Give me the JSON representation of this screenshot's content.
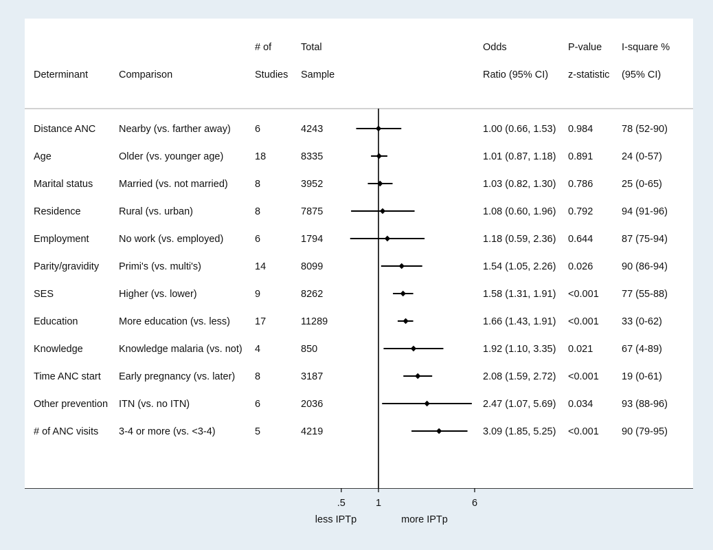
{
  "chart_data": {
    "type": "forest",
    "x_scale": "log",
    "reference_line": 1,
    "xticks": [
      {
        "value": 0.5,
        "label": ".5"
      },
      {
        "value": 1,
        "label": "1"
      },
      {
        "value": 6,
        "label": "6"
      }
    ],
    "xlabel_left": "less IPTp",
    "xlabel_right": "more IPTp",
    "columns": {
      "determinant": [
        "",
        "Determinant"
      ],
      "comparison": [
        "",
        "Comparison"
      ],
      "studies": [
        "# of",
        "Studies"
      ],
      "sample": [
        "Total",
        "Sample"
      ],
      "or": [
        "Odds",
        "Ratio (95% CI)"
      ],
      "p": [
        "P-value",
        "z-statistic"
      ],
      "i2": [
        "I-square %",
        "(95% CI)"
      ]
    },
    "rows": [
      {
        "determinant": "Distance ANC",
        "comparison": "Nearby (vs. farther away)",
        "studies": "6",
        "sample": "4243",
        "or": 1.0,
        "lo": 0.66,
        "hi": 1.53,
        "or_text": "1.00 (0.66, 1.53)",
        "p": "0.984",
        "i2": "78 (52-90)"
      },
      {
        "determinant": "Age",
        "comparison": "Older (vs. younger age)",
        "studies": "18",
        "sample": "8335",
        "or": 1.01,
        "lo": 0.87,
        "hi": 1.18,
        "or_text": "1.01 (0.87, 1.18)",
        "p": "0.891",
        "i2": "24 (0-57)"
      },
      {
        "determinant": "Marital status",
        "comparison": "Married (vs. not married)",
        "studies": "8",
        "sample": "3952",
        "or": 1.03,
        "lo": 0.82,
        "hi": 1.3,
        "or_text": "1.03 (0.82, 1.30)",
        "p": "0.786",
        "i2": "25 (0-65)"
      },
      {
        "determinant": "Residence",
        "comparison": "Rural (vs. urban)",
        "studies": "8",
        "sample": "7875",
        "or": 1.08,
        "lo": 0.6,
        "hi": 1.96,
        "or_text": "1.08 (0.60, 1.96)",
        "p": "0.792",
        "i2": "94 (91-96)"
      },
      {
        "determinant": "Employment",
        "comparison": "No work (vs. employed)",
        "studies": "6",
        "sample": "1794",
        "or": 1.18,
        "lo": 0.59,
        "hi": 2.36,
        "or_text": "1.18 (0.59, 2.36)",
        "p": "0.644",
        "i2": "87 (75-94)"
      },
      {
        "determinant": "Parity/gravidity",
        "comparison": "Primi's (vs. multi's)",
        "studies": "14",
        "sample": "8099",
        "or": 1.54,
        "lo": 1.05,
        "hi": 2.26,
        "or_text": "1.54 (1.05, 2.26)",
        "p": "0.026",
        "i2": "90 (86-94)"
      },
      {
        "determinant": "SES",
        "comparison": "Higher (vs. lower)",
        "studies": "9",
        "sample": "8262",
        "or": 1.58,
        "lo": 1.31,
        "hi": 1.91,
        "or_text": "1.58 (1.31, 1.91)",
        "p": "<0.001",
        "i2": "77 (55-88)"
      },
      {
        "determinant": "Education",
        "comparison": "More education (vs. less)",
        "studies": "17",
        "sample": "11289",
        "or": 1.66,
        "lo": 1.43,
        "hi": 1.91,
        "or_text": "1.66 (1.43, 1.91)",
        "p": "<0.001",
        "i2": "33 (0-62)"
      },
      {
        "determinant": "Knowledge",
        "comparison": "Knowledge malaria (vs. not)",
        "studies": "4",
        "sample": "850",
        "or": 1.92,
        "lo": 1.1,
        "hi": 3.35,
        "or_text": "1.92 (1.10, 3.35)",
        "p": "0.021",
        "i2": "67 (4-89)"
      },
      {
        "determinant": "Time ANC start",
        "comparison": "Early pregnancy (vs. later)",
        "studies": "8",
        "sample": "3187",
        "or": 2.08,
        "lo": 1.59,
        "hi": 2.72,
        "or_text": "2.08 (1.59, 2.72)",
        "p": "<0.001",
        "i2": "19 (0-61)"
      },
      {
        "determinant": "Other prevention",
        "comparison": "ITN (vs. no ITN)",
        "studies": "6",
        "sample": "2036",
        "or": 2.47,
        "lo": 1.07,
        "hi": 5.69,
        "or_text": "2.47 (1.07, 5.69)",
        "p": "0.034",
        "i2": "93 (88-96)"
      },
      {
        "determinant": "# of ANC visits",
        "comparison": "3-4 or more (vs. <3-4)",
        "studies": "5",
        "sample": "4219",
        "or": 3.09,
        "lo": 1.85,
        "hi": 5.25,
        "or_text": "3.09 (1.85, 5.25)",
        "p": "<0.001",
        "i2": "90 (79-95)"
      }
    ]
  }
}
